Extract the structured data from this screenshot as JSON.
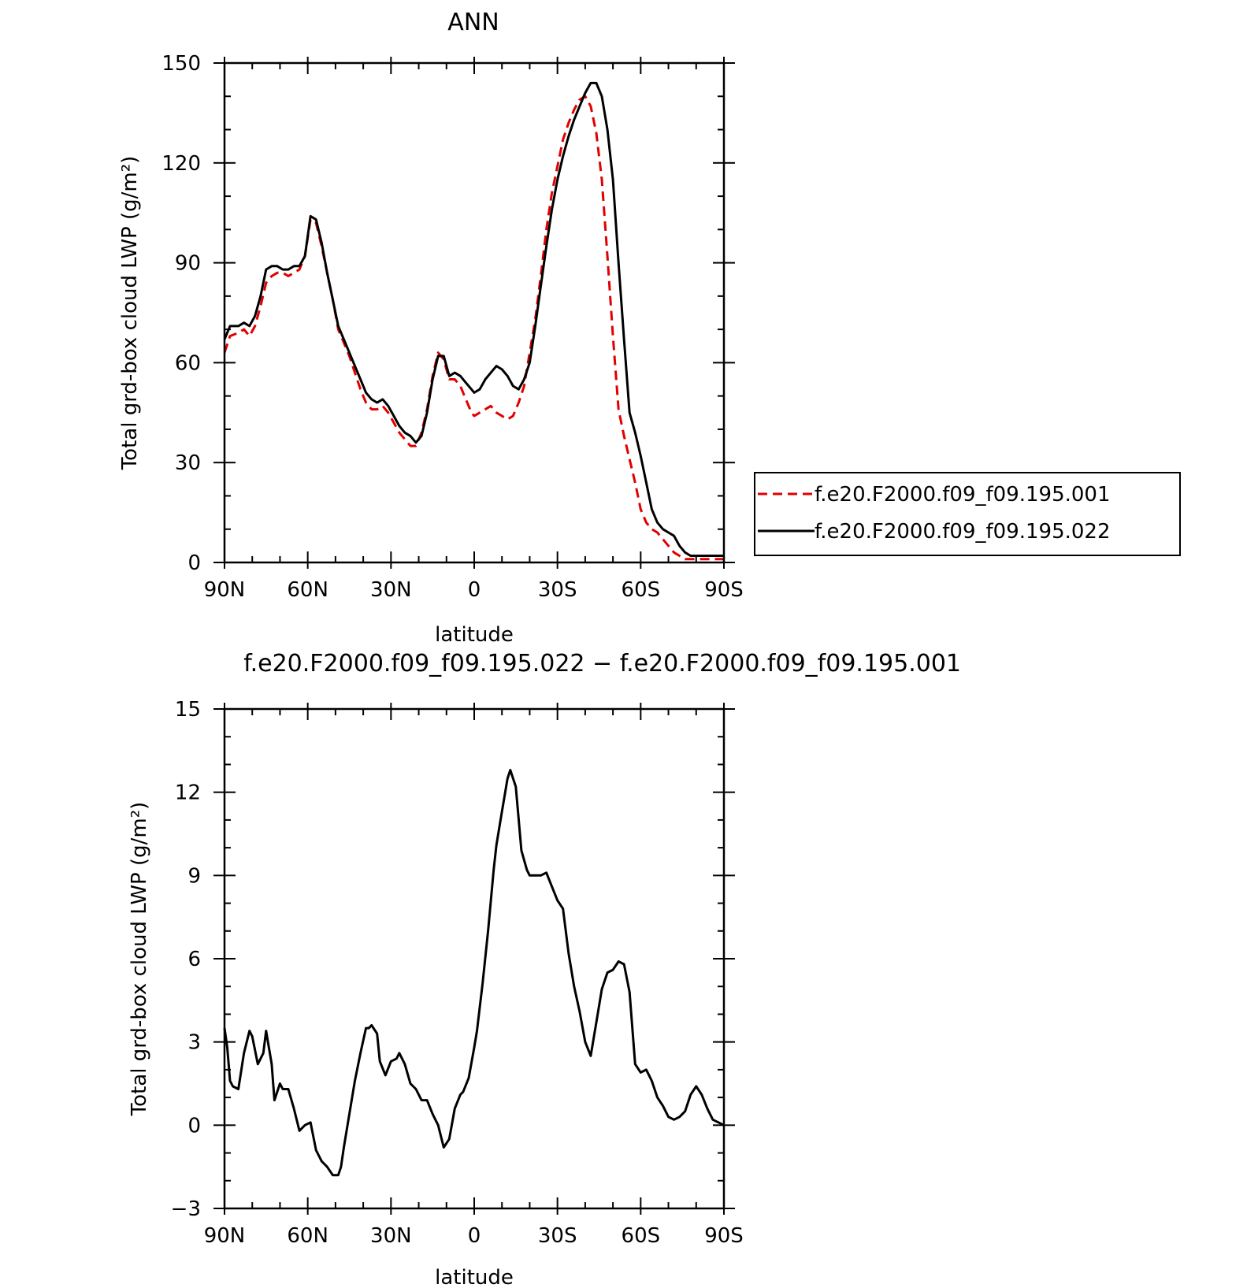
{
  "figure_title": "ANN",
  "diff_title": "f.e20.F2000.f09_f09.195.022 − f.e20.F2000.f09_f09.195.001",
  "chart_data": [
    {
      "type": "line",
      "title": "ANN",
      "xlabel": "latitude",
      "ylabel": "Total grd-box cloud LWP (g/m²)",
      "xlim": [
        90,
        -90
      ],
      "ylim": [
        0,
        150
      ],
      "x_ticks": [
        90,
        60,
        30,
        0,
        -30,
        -60,
        -90
      ],
      "x_tick_labels": [
        "90N",
        "60N",
        "30N",
        "0",
        "30S",
        "60S",
        "90S"
      ],
      "y_ticks": [
        0,
        30,
        60,
        90,
        120,
        150
      ],
      "y_tick_labels": [
        "0",
        "30",
        "60",
        "90",
        "120",
        "150"
      ],
      "legend": "right",
      "series": [
        {
          "name": "f.e20.F2000.f09_f09.195.001",
          "color": "#e00000",
          "dash": "dashed",
          "x": [
            90,
            88,
            85,
            83,
            81,
            79,
            77,
            75,
            73,
            71,
            69,
            67,
            65,
            63,
            61,
            59,
            57,
            55,
            53,
            51,
            49,
            47,
            45,
            43,
            41,
            39,
            37,
            35,
            33,
            31,
            29,
            27,
            25,
            23,
            21,
            19,
            17,
            15,
            13,
            11,
            9,
            7,
            5,
            3,
            1,
            0,
            -2,
            -4,
            -6,
            -8,
            -10,
            -12,
            -14,
            -16,
            -18,
            -20,
            -22,
            -24,
            -26,
            -28,
            -30,
            -32,
            -34,
            -36,
            -38,
            -40,
            -42,
            -44,
            -46,
            -48,
            -50,
            -52,
            -54,
            -56,
            -58,
            -60,
            -62,
            -64,
            -66,
            -68,
            -70,
            -72,
            -74,
            -76,
            -78,
            -80,
            -82,
            -84,
            -86,
            -88,
            -90
          ],
          "y": [
            63,
            68,
            69,
            70,
            68,
            71,
            77,
            84,
            86,
            87,
            87,
            86,
            87,
            88,
            92,
            103,
            102,
            95,
            87,
            79,
            70,
            66,
            62,
            57,
            52,
            48,
            46,
            46,
            47,
            45,
            42,
            39,
            37,
            35,
            35,
            39,
            46,
            56,
            63,
            61,
            55,
            55,
            53,
            49,
            45,
            44,
            45,
            46,
            47,
            45,
            44,
            43,
            44,
            48,
            53,
            63,
            73,
            86,
            100,
            111,
            119,
            127,
            132,
            136,
            139,
            140,
            137,
            129,
            115,
            92,
            68,
            46,
            38,
            31,
            24,
            16,
            12,
            10,
            9,
            7,
            5,
            3,
            2,
            1,
            1,
            1,
            1,
            1,
            1,
            1,
            1
          ],
          "y_note": ""
        },
        {
          "name": "f.e20.F2000.f09_f09.195.022",
          "color": "#000000",
          "dash": "solid",
          "x": [
            90,
            88,
            85,
            83,
            81,
            79,
            77,
            75,
            73,
            71,
            69,
            67,
            65,
            63,
            61,
            59,
            57,
            55,
            53,
            51,
            49,
            47,
            45,
            43,
            41,
            39,
            37,
            35,
            33,
            31,
            29,
            27,
            25,
            23,
            21,
            19,
            17,
            15,
            13,
            11,
            9,
            7,
            5,
            3,
            1,
            0,
            -2,
            -4,
            -6,
            -8,
            -10,
            -12,
            -14,
            -16,
            -18,
            -20,
            -22,
            -24,
            -26,
            -28,
            -30,
            -32,
            -34,
            -36,
            -38,
            -40,
            -42,
            -44,
            -46,
            -48,
            -50,
            -52,
            -54,
            -56,
            -58,
            -60,
            -62,
            -64,
            -66,
            -68,
            -70,
            -72,
            -74,
            -76,
            -78,
            -80,
            -82,
            -84,
            -86,
            -88,
            -90
          ],
          "y": [
            67,
            71,
            71,
            72,
            71,
            74,
            80,
            88,
            89,
            89,
            88,
            88,
            89,
            89,
            92,
            104,
            103,
            96,
            87,
            79,
            71,
            67,
            63,
            59,
            55,
            51,
            49,
            48,
            49,
            47,
            44,
            41,
            39,
            38,
            36,
            38,
            45,
            55,
            62,
            62,
            56,
            57,
            56,
            54,
            52,
            51,
            52,
            55,
            57,
            59,
            58,
            56,
            53,
            52,
            55,
            60,
            71,
            83,
            95,
            106,
            115,
            122,
            128,
            133,
            137,
            141,
            144,
            144,
            140,
            130,
            115,
            90,
            67,
            45,
            39,
            32,
            24,
            16,
            12,
            10,
            9,
            8,
            5,
            3,
            2,
            2,
            2,
            2,
            2,
            2,
            2
          ],
          "y_note": ""
        }
      ]
    },
    {
      "type": "line",
      "title": "f.e20.F2000.f09_f09.195.022 − f.e20.F2000.f09_f09.195.001",
      "xlabel": "latitude",
      "ylabel": "Total grd-box cloud LWP (g/m²)",
      "xlim": [
        90,
        -90
      ],
      "ylim": [
        -3,
        15
      ],
      "x_ticks": [
        90,
        60,
        30,
        0,
        -30,
        -60,
        -90
      ],
      "x_tick_labels": [
        "90N",
        "60N",
        "30N",
        "0",
        "30S",
        "60S",
        "90S"
      ],
      "y_ticks": [
        -3,
        0,
        3,
        6,
        9,
        12,
        15
      ],
      "y_tick_labels": [
        "−3",
        "0",
        "3",
        "6",
        "9",
        "12",
        "15"
      ],
      "series": [
        {
          "name": "",
          "color": "#000000",
          "dash": "solid",
          "x": [
            90,
            89,
            88,
            87,
            85,
            83,
            81,
            80,
            78,
            76,
            75,
            73,
            72,
            70,
            69,
            67,
            65,
            63,
            61,
            59,
            57,
            55,
            53,
            51,
            49,
            48,
            47,
            45,
            43,
            41,
            39,
            38,
            37,
            35,
            34,
            32,
            30,
            28,
            27,
            25,
            23,
            21,
            19,
            17,
            15,
            13,
            11,
            9,
            7,
            5,
            4,
            2,
            0,
            -1,
            -3,
            -5,
            -7,
            -8,
            -10,
            -12,
            -13,
            -15,
            -17,
            -19,
            -20,
            -22,
            -24,
            -26,
            -28,
            -30,
            -32,
            -34,
            -36,
            -38,
            -40,
            -42,
            -44,
            -46,
            -48,
            -50,
            -52,
            -54,
            -56,
            -58,
            -60,
            -62,
            -64,
            -66,
            -68,
            -70,
            -72,
            -74,
            -76,
            -78,
            -80,
            -82,
            -84,
            -86,
            -88,
            -90
          ],
          "y": [
            3.5,
            2.8,
            1.6,
            1.4,
            1.3,
            2.6,
            3.4,
            3.2,
            2.2,
            2.6,
            3.4,
            2.2,
            0.9,
            1.5,
            1.3,
            1.3,
            0.6,
            -0.2,
            0.0,
            0.1,
            -0.9,
            -1.3,
            -1.5,
            -1.8,
            -1.8,
            -1.5,
            -0.8,
            0.4,
            1.6,
            2.6,
            3.5,
            3.5,
            3.6,
            3.3,
            2.3,
            1.8,
            2.3,
            2.4,
            2.6,
            2.2,
            1.5,
            1.3,
            0.9,
            0.9,
            0.4,
            0.0,
            -0.8,
            -0.5,
            0.6,
            1.1,
            1.2,
            1.7,
            2.8,
            3.4,
            5.1,
            7.0,
            9.2,
            10.1,
            11.3,
            12.5,
            12.8,
            12.2,
            9.9,
            9.2,
            9.0,
            9.0,
            9.0,
            9.1,
            8.6,
            8.1,
            7.8,
            6.2,
            5.0,
            4.1,
            3.0,
            2.5,
            3.7,
            4.9,
            5.5,
            5.6,
            5.9,
            5.8,
            4.8,
            2.2,
            1.9,
            2.0,
            1.6,
            1.0,
            0.7,
            0.3,
            0.2,
            0.3,
            0.5,
            1.1,
            1.4,
            1.1,
            0.6,
            0.2,
            0.1,
            0.0
          ],
          "y_note": ""
        }
      ]
    }
  ]
}
